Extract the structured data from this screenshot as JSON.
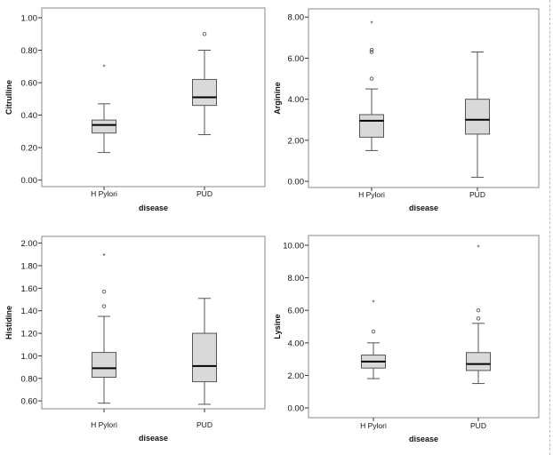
{
  "chart_data": [
    {
      "type": "box",
      "xlabel": "disease",
      "ylabel": "Citrulline",
      "ylim": [
        -0.04,
        1.06
      ],
      "yticks": [
        "0.00",
        "0.20",
        "0.40",
        "0.60",
        "0.80",
        "1.00"
      ],
      "categories": [
        "H Pylori",
        "PUD"
      ],
      "boxes": [
        {
          "category": "H Pylori",
          "min": 0.17,
          "q1": 0.29,
          "median": 0.34,
          "q3": 0.37,
          "max": 0.47,
          "outliers": [],
          "extremes": [
            0.7
          ]
        },
        {
          "category": "PUD",
          "min": 0.28,
          "q1": 0.46,
          "median": 0.51,
          "q3": 0.62,
          "max": 0.8,
          "outliers": [
            0.9
          ],
          "extremes": []
        }
      ]
    },
    {
      "type": "box",
      "xlabel": "disease",
      "ylabel": "Arginine",
      "ylim": [
        -0.3,
        8.4
      ],
      "yticks": [
        "0.00",
        "2.00",
        "4.00",
        "6.00",
        "8.00"
      ],
      "categories": [
        "H Pylori",
        "PUD"
      ],
      "boxes": [
        {
          "category": "H Pylori",
          "min": 1.5,
          "q1": 2.15,
          "median": 2.95,
          "q3": 3.25,
          "max": 4.5,
          "outliers": [
            5.0,
            6.3,
            6.4
          ],
          "extremes": [
            7.7
          ]
        },
        {
          "category": "PUD",
          "min": 0.2,
          "q1": 2.3,
          "median": 3.0,
          "q3": 4.0,
          "max": 6.3,
          "outliers": [],
          "extremes": []
        }
      ]
    },
    {
      "type": "box",
      "xlabel": "disease",
      "ylabel": "Histidine",
      "ylim": [
        0.53,
        2.06
      ],
      "yticks": [
        "0.60",
        "0.80",
        "1.00",
        "1.20",
        "1.40",
        "1.60",
        "1.80",
        "2.00"
      ],
      "categories": [
        "H Pylori",
        "PUD"
      ],
      "boxes": [
        {
          "category": "H Pylori",
          "min": 0.58,
          "q1": 0.81,
          "median": 0.89,
          "q3": 1.03,
          "max": 1.35,
          "outliers": [
            1.44,
            1.57
          ],
          "extremes": [
            1.89
          ]
        },
        {
          "category": "PUD",
          "min": 0.57,
          "q1": 0.77,
          "median": 0.91,
          "q3": 1.2,
          "max": 1.51,
          "outliers": [],
          "extremes": []
        }
      ]
    },
    {
      "type": "box",
      "xlabel": "disease",
      "ylabel": "Lysine",
      "ylim": [
        -0.6,
        10.6
      ],
      "yticks": [
        "0.00",
        "2.00",
        "4.00",
        "6.00",
        "8.00",
        "10.00"
      ],
      "categories": [
        "H Pylori",
        "PUD"
      ],
      "boxes": [
        {
          "category": "H Pylori",
          "min": 1.8,
          "q1": 2.45,
          "median": 2.85,
          "q3": 3.25,
          "max": 4.0,
          "outliers": [
            4.7
          ],
          "extremes": [
            6.5
          ]
        },
        {
          "category": "PUD",
          "min": 1.5,
          "q1": 2.3,
          "median": 2.7,
          "q3": 3.4,
          "max": 5.2,
          "outliers": [
            5.5,
            6.0
          ],
          "extremes": [
            9.9
          ]
        }
      ]
    }
  ],
  "colors": {
    "box_fill": "#d9d9d9",
    "stroke": "#555555",
    "median": "#000000",
    "background": "#ffffff"
  }
}
